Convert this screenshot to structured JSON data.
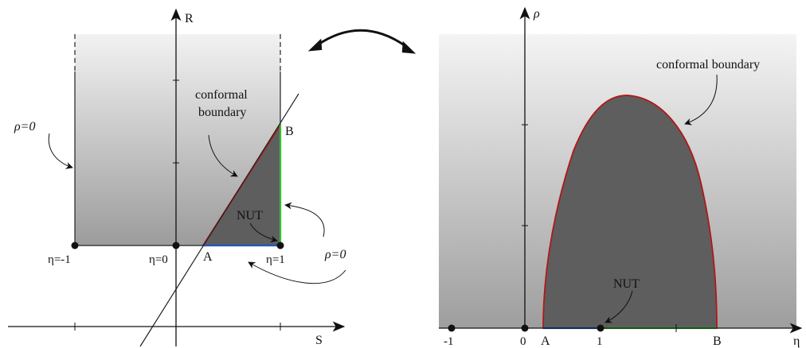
{
  "left_panel": {
    "axis_s_label": "S",
    "axis_r_label": "R",
    "rho_zero_left": "ρ=0",
    "conformal_line1": "conformal",
    "conformal_line2": "boundary",
    "point_b": "B",
    "point_a": "A",
    "nut_label": "NUT",
    "rho_zero_right": "ρ=0",
    "eta_minus1": "η=-1",
    "eta_0": "η=0",
    "eta_1": "η=1"
  },
  "right_panel": {
    "axis_eta_label": "η",
    "axis_rho_label": "ρ",
    "conformal_label": "conformal boundary",
    "nut_label": "NUT",
    "tick_minus1": "-1",
    "tick_0": "0",
    "tick_1": "1",
    "point_a": "A",
    "point_b": "B"
  },
  "colors": {
    "region_dark": "#5e5e5e",
    "boundary_red": "#b01818",
    "segment_green": "#2fbf2f",
    "segment_blue": "#2456c8",
    "background_light": "#f2f2f2",
    "background_dark": "#9c9c9c"
  }
}
